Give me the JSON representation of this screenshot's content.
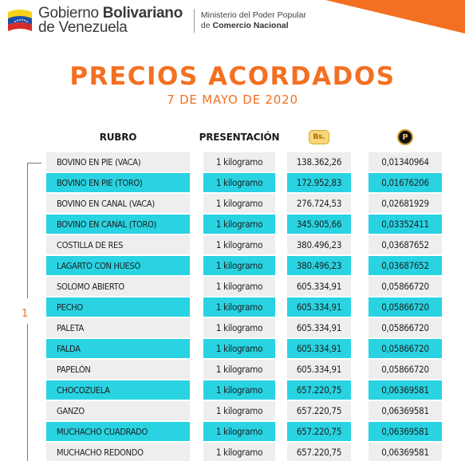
{
  "header": {
    "government_line1_regular": "Gobierno ",
    "government_line1_bold": "Bolivariano",
    "government_line2": "de Venezuela",
    "ministry_line1": "Ministerio del Poder Popular",
    "ministry_line2_prefix": "de ",
    "ministry_line2_bold": "Comercio Nacional"
  },
  "title": "PRECIOS ACORDADOS",
  "date": "7 DE MAYO DE 2020",
  "columns": {
    "rubro": "RUBRO",
    "presentacion": "PRESENTACIÓN",
    "bs_icon_label": "Bs.",
    "petro_icon_label": "P"
  },
  "group_label": "1",
  "colors": {
    "accent_orange": "#f36f21",
    "row_cyan": "#29d3e2",
    "row_light": "#eeeeee"
  },
  "rows": [
    {
      "rubro": "BOVINO EN PIE (VACA)",
      "presentacion": "1 kilogramo",
      "bs": "138.362,26",
      "petro": "0,01340964"
    },
    {
      "rubro": "BOVINO EN PIE (TORO)",
      "presentacion": "1 kilogramo",
      "bs": "172.952,83",
      "petro": "0,01676206"
    },
    {
      "rubro": "BOVINO EN CANAL (VACA)",
      "presentacion": "1 kilogramo",
      "bs": "276.724,53",
      "petro": "0,02681929"
    },
    {
      "rubro": "BOVINO EN CANAL (TORO)",
      "presentacion": "1 kilogramo",
      "bs": "345.905,66",
      "petro": "0,03352411"
    },
    {
      "rubro": "COSTILLA DE RES",
      "presentacion": "1 kilogramo",
      "bs": "380.496,23",
      "petro": "0,03687652"
    },
    {
      "rubro": "LAGARTO CON HUESO",
      "presentacion": "1 kilogramo",
      "bs": "380.496,23",
      "petro": "0,03687652"
    },
    {
      "rubro": "SOLOMO ABIERTO",
      "presentacion": "1 kilogramo",
      "bs": "605.334,91",
      "petro": "0,05866720"
    },
    {
      "rubro": "PECHO",
      "presentacion": "1 kilogramo",
      "bs": "605.334,91",
      "petro": "0,05866720"
    },
    {
      "rubro": "PALETA",
      "presentacion": "1 kilogramo",
      "bs": "605.334,91",
      "petro": "0,05866720"
    },
    {
      "rubro": "FALDA",
      "presentacion": "1 kilogramo",
      "bs": "605.334,91",
      "petro": "0,05866720"
    },
    {
      "rubro": "PAPELÓN",
      "presentacion": "1 kilogramo",
      "bs": "605.334,91",
      "petro": "0,05866720"
    },
    {
      "rubro": "CHOCOZUELA",
      "presentacion": "1 kilogramo",
      "bs": "657.220,75",
      "petro": "0,06369581"
    },
    {
      "rubro": "GANZO",
      "presentacion": "1 kilogramo",
      "bs": "657.220,75",
      "petro": "0,06369581"
    },
    {
      "rubro": "MUCHACHO CUADRADO",
      "presentacion": "1 kilogramo",
      "bs": "657.220,75",
      "petro": "0,06369581"
    },
    {
      "rubro": "MUCHACHO REDONDO",
      "presentacion": "1 kilogramo",
      "bs": "657.220,75",
      "petro": "0,06369581"
    }
  ]
}
